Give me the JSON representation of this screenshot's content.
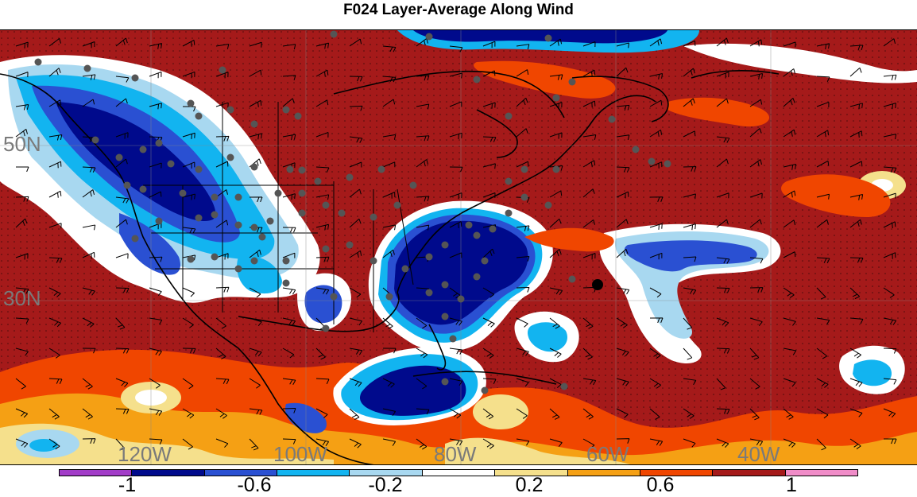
{
  "title": "F024 Layer-Average Along Wind",
  "map": {
    "latitude_labels": [
      "50N",
      "30N"
    ],
    "longitude_labels": [
      "120W",
      "100W",
      "80W",
      "60W",
      "40W"
    ]
  },
  "colorbar": {
    "colors": [
      "#a23cc8",
      "#000a8c",
      "#2a50d2",
      "#12b4f0",
      "#a8d8f0",
      "#ffffff",
      "#f5e08c",
      "#f5a014",
      "#f04600",
      "#a51a1a",
      "#f08cc8"
    ],
    "tick_labels": [
      "-1",
      "-0.6",
      "-0.2",
      "0.2",
      "0.6",
      "1"
    ]
  },
  "colors": {
    "strong_positive": "#a51a1a",
    "positive": "#f04600",
    "weak_positive": "#f5a014",
    "slight_positive": "#f5e08c",
    "strong_negative": "#000a8c",
    "negative": "#2a50d2",
    "weak_negative": "#12b4f0",
    "coastline": "#000000",
    "station_dot": "#555555"
  }
}
